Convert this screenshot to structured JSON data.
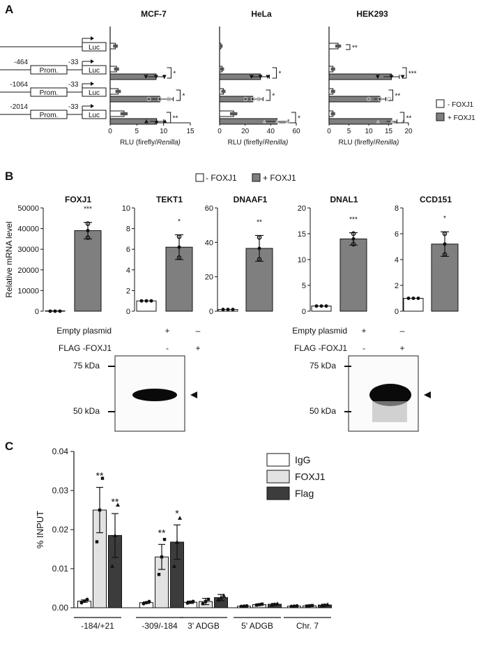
{
  "panels": {
    "a": "A",
    "b": "B",
    "c": "C"
  },
  "colors": {
    "open": "#ffffff",
    "foxj1": "#7f7f7f",
    "c_foxj1": "#e2e2e2",
    "c_flag": "#3c3c3c",
    "ink": "#111111"
  },
  "panel_a": {
    "legend": {
      "minus": "- FOXJ1",
      "plus": "+ FOXJ1"
    },
    "constructs": [
      {
        "start": "",
        "prom": "",
        "end": "",
        "luc": "Luc"
      },
      {
        "start": "-464",
        "prom": "Prom.",
        "end": "-33",
        "luc": "Luc"
      },
      {
        "start": "-1064",
        "prom": "Prom.",
        "end": "-33",
        "luc": "Luc"
      },
      {
        "start": "-2014",
        "prom": "Prom.",
        "end": "-33",
        "luc": "Luc"
      }
    ]
  },
  "panel_b": {
    "legend": {
      "minus": "- FOXJ1",
      "plus": "+ FOXJ1"
    },
    "ylabel": "Relative mRNA level",
    "western": [
      {
        "row1": "Empty plasmid",
        "row2": "FLAG -FOXJ1",
        "row1_signs": [
          "+",
          "–"
        ],
        "row2_signs": [
          "-",
          "+"
        ],
        "marker_top": "75 kDa",
        "marker_bottom": "50 kDa",
        "band": "FLAG"
      },
      {
        "row1": "Empty plasmid",
        "row2": "FLAG -FOXJ1",
        "row1_signs": [
          "+",
          "–"
        ],
        "row2_signs": [
          "-",
          "+"
        ],
        "marker_top": "75 kDa",
        "marker_bottom": "50 kDa",
        "band": "FOXJ1"
      }
    ]
  },
  "chart_data": [
    {
      "type": "bar",
      "panel": "A",
      "title": "MCF-7",
      "orientation": "horizontal",
      "xlabel": "RLU (firefly/Renilla)",
      "xlim": [
        0,
        15
      ],
      "xticks": [
        0,
        5,
        10,
        15
      ],
      "categories": [
        "Luc",
        "-464/-33",
        "-1064/-33",
        "-2014/-33"
      ],
      "series": [
        {
          "name": "- FOXJ1",
          "values": [
            1.0,
            1.2,
            1.5,
            2.6
          ],
          "errors": [
            0.3,
            0.3,
            0.3,
            0.6
          ]
        },
        {
          "name": "+ FOXJ1",
          "values": [
            null,
            8.6,
            9.3,
            8.7
          ],
          "errors": [
            null,
            1.5,
            2.5,
            1.3
          ]
        }
      ],
      "annotations": [
        "",
        "*",
        "*",
        "**"
      ]
    },
    {
      "type": "bar",
      "panel": "A",
      "title": "HeLa",
      "orientation": "horizontal",
      "xlabel": "RLU (firefly/Renilla)",
      "xlim": [
        0,
        60
      ],
      "xticks": [
        0,
        20,
        40,
        60
      ],
      "categories": [
        "Luc",
        "-464/-33",
        "-1064/-33",
        "-2014/-33"
      ],
      "series": [
        {
          "name": "- FOXJ1",
          "values": [
            1.0,
            2.0,
            3.0,
            11.0
          ],
          "errors": [
            0.5,
            0.5,
            0.8,
            2.0
          ]
        },
        {
          "name": "+ FOXJ1",
          "values": [
            null,
            32,
            26,
            45
          ],
          "errors": [
            null,
            7,
            8,
            9
          ]
        }
      ],
      "annotations": [
        "",
        "*",
        "*",
        "*"
      ]
    },
    {
      "type": "bar",
      "panel": "A",
      "title": "HEK293",
      "orientation": "horizontal",
      "xlabel": "RLU (firefly/Renilla)",
      "xlim": [
        0,
        20
      ],
      "xticks": [
        0,
        5,
        10,
        15,
        20
      ],
      "categories": [
        "Luc",
        "-464/-33",
        "-1064/-33",
        "-2014/-33"
      ],
      "series": [
        {
          "name": "- FOXJ1",
          "values": [
            2.3,
            1.0,
            1.0,
            1.0
          ],
          "errors": [
            0.5,
            0.3,
            0.3,
            0.3
          ]
        },
        {
          "name": "+ FOXJ1",
          "values": [
            null,
            15.7,
            12.8,
            15.8
          ],
          "errors": [
            null,
            2.0,
            1.5,
            1.3
          ]
        }
      ],
      "annotations": [
        "**",
        "***",
        "**",
        "**"
      ]
    },
    {
      "type": "bar",
      "panel": "B",
      "title": "FOXJ1",
      "categories": [
        "- FOXJ1",
        "+ FOXJ1"
      ],
      "values": [
        20,
        39000
      ],
      "errors": [
        0,
        4000
      ],
      "ylim": [
        0,
        50000
      ],
      "yticks": [
        0,
        10000,
        20000,
        30000,
        40000,
        50000
      ],
      "ylabel": "Relative mRNA level",
      "annotation": "***"
    },
    {
      "type": "bar",
      "panel": "B",
      "title": "TEKT1",
      "categories": [
        "- FOXJ1",
        "+ FOXJ1"
      ],
      "values": [
        1,
        6.2
      ],
      "errors": [
        0.05,
        1.2
      ],
      "ylim": [
        0,
        10
      ],
      "yticks": [
        0,
        2,
        4,
        6,
        8,
        10
      ],
      "annotation": "*"
    },
    {
      "type": "bar",
      "panel": "B",
      "title": "DNAAF1",
      "categories": [
        "- FOXJ1",
        "+ FOXJ1"
      ],
      "values": [
        1,
        36.5
      ],
      "errors": [
        0.2,
        7.5
      ],
      "ylim": [
        0,
        60
      ],
      "yticks": [
        0,
        20,
        40,
        60
      ],
      "annotation": "**"
    },
    {
      "type": "bar",
      "panel": "B",
      "title": "DNAL1",
      "categories": [
        "- FOXJ1",
        "+ FOXJ1"
      ],
      "values": [
        1,
        14
      ],
      "errors": [
        0.05,
        1.2
      ],
      "ylim": [
        0,
        20
      ],
      "yticks": [
        0,
        5,
        10,
        15,
        20
      ],
      "annotation": "***"
    },
    {
      "type": "bar",
      "panel": "B",
      "title": "CCD151",
      "categories": [
        "- FOXJ1",
        "+ FOXJ1"
      ],
      "values": [
        1,
        5.2
      ],
      "errors": [
        0.02,
        0.95
      ],
      "ylim": [
        0,
        8
      ],
      "yticks": [
        0,
        2,
        4,
        6,
        8
      ],
      "annotation": "*"
    },
    {
      "type": "bar",
      "panel": "C",
      "ylabel": "% INPUT",
      "ylim": [
        0,
        0.04
      ],
      "yticks": [
        "0.00",
        "0.01",
        "0.02",
        "0.03",
        "0.04"
      ],
      "categories": [
        "-184/+21",
        "-309/-184",
        "3' ADGB",
        "5' ADGB",
        "Chr. 7"
      ],
      "series": [
        {
          "name": "IgG",
          "values": [
            0.0017,
            0.0013,
            0.0014,
            0.0004,
            0.0004
          ],
          "errors": [
            0.0003,
            0.0002,
            0.0003,
            0.0001,
            0.0001
          ]
        },
        {
          "name": "FOXJ1",
          "values": [
            0.025,
            0.013,
            0.0016,
            0.0008,
            0.0005
          ],
          "errors": [
            0.0058,
            0.0032,
            0.0008,
            0.0002,
            0.0001
          ]
        },
        {
          "name": "Flag",
          "values": [
            0.0185,
            0.0168,
            0.0026,
            0.0009,
            0.0007
          ],
          "errors": [
            0.0056,
            0.0044,
            0.0008,
            0.0002,
            0.0002
          ]
        }
      ],
      "annotations": {
        "FOXJ1": [
          "**",
          "**",
          "",
          "",
          ""
        ],
        "Flag": [
          "**",
          "*",
          "",
          "",
          ""
        ]
      }
    }
  ]
}
